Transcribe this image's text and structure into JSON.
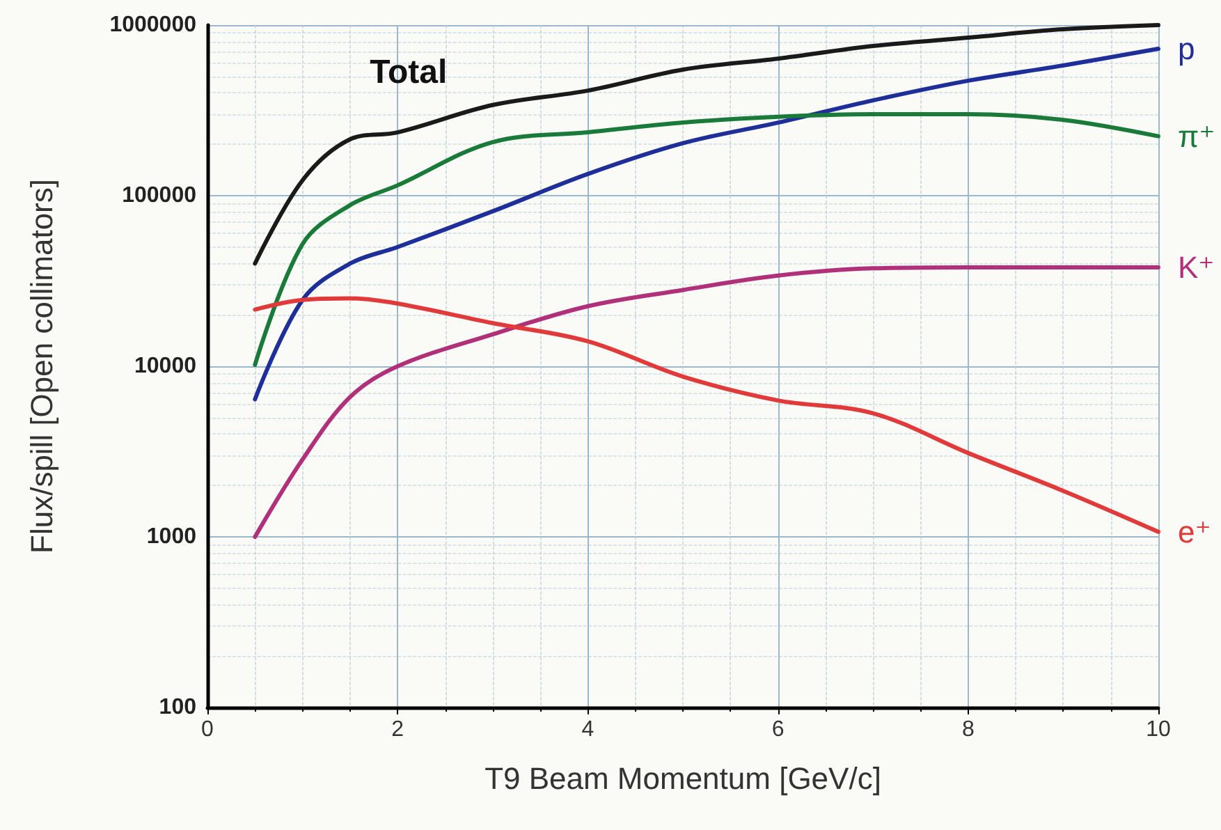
{
  "chart_data": {
    "type": "line",
    "xlabel": "T9 Beam Momentum [GeV/c]",
    "ylabel": "Flux/spill [Open collimators]",
    "x": [
      0.5,
      1,
      1.5,
      2,
      3,
      4,
      5,
      6,
      7,
      8,
      9,
      10
    ],
    "series": [
      {
        "name": "Total",
        "color": "#1a1a1a",
        "values": [
          40000,
          123000,
          214000,
          235000,
          340000,
          413000,
          548000,
          636000,
          754000,
          844000,
          945000,
          1000000
        ]
      },
      {
        "name": "p",
        "color": "#1f2f9a",
        "values": [
          6400,
          24500,
          40000,
          50000,
          81000,
          134000,
          203000,
          268000,
          362000,
          472000,
          580000,
          726000
        ]
      },
      {
        "name": "π⁺",
        "color": "#1a7a3a",
        "values": [
          10200,
          52000,
          88000,
          115000,
          206000,
          235000,
          268000,
          290000,
          300000,
          300000,
          278000,
          223000
        ]
      },
      {
        "name": "K⁺",
        "color": "#b0307a",
        "values": [
          1000,
          2840,
          6600,
          10000,
          15400,
          22500,
          28000,
          34000,
          37500,
          38000,
          38000,
          38000
        ]
      },
      {
        "name": "e⁺",
        "color": "#e03a3a",
        "values": [
          21500,
          24500,
          25000,
          23300,
          17900,
          14000,
          8700,
          6300,
          5300,
          3100,
          1860,
          1070
        ]
      }
    ],
    "xlim": [
      0,
      10
    ],
    "xticks": [
      0,
      2,
      4,
      6,
      8,
      10
    ],
    "ylim": [
      100,
      1000000
    ],
    "yticks": [
      100,
      1000,
      10000,
      100000,
      1000000
    ],
    "log": "y",
    "grid": true,
    "marker": "none",
    "line_style": "solid"
  }
}
